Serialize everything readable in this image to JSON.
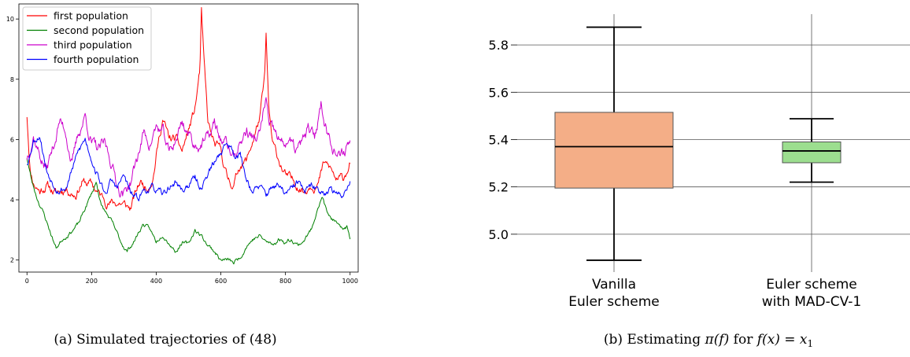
{
  "chart_data": [
    {
      "type": "line",
      "title": "",
      "xlabel": "",
      "ylabel": "",
      "xlim": [
        -25,
        1025
      ],
      "ylim": [
        1.6,
        10.5
      ],
      "xticks": [
        0,
        200,
        400,
        600,
        800,
        1000
      ],
      "yticks": [
        2,
        4,
        6,
        8,
        10
      ],
      "legend_position": "top-left",
      "series": [
        {
          "name": "first population",
          "color": "#ff0000",
          "anchors": [
            [
              0,
              6.8
            ],
            [
              10,
              5.0
            ],
            [
              20,
              4.6
            ],
            [
              40,
              4.3
            ],
            [
              60,
              4.5
            ],
            [
              90,
              4.2
            ],
            [
              120,
              4.4
            ],
            [
              150,
              4.2
            ],
            [
              170,
              4.6
            ],
            [
              200,
              4.5
            ],
            [
              230,
              4.1
            ],
            [
              260,
              3.9
            ],
            [
              290,
              3.9
            ],
            [
              320,
              3.7
            ],
            [
              350,
              4.6
            ],
            [
              370,
              4.4
            ],
            [
              390,
              4.8
            ],
            [
              400,
              5.5
            ],
            [
              420,
              6.7
            ],
            [
              440,
              6.0
            ],
            [
              460,
              6.0
            ],
            [
              480,
              5.6
            ],
            [
              500,
              6.3
            ],
            [
              520,
              7.0
            ],
            [
              535,
              8.3
            ],
            [
              540,
              10.2
            ],
            [
              548,
              8.5
            ],
            [
              560,
              6.5
            ],
            [
              580,
              5.8
            ],
            [
              600,
              5.6
            ],
            [
              620,
              4.7
            ],
            [
              640,
              4.5
            ],
            [
              660,
              5.2
            ],
            [
              680,
              5.3
            ],
            [
              700,
              6.0
            ],
            [
              720,
              6.7
            ],
            [
              735,
              7.9
            ],
            [
              740,
              9.4
            ],
            [
              748,
              7.0
            ],
            [
              760,
              5.8
            ],
            [
              780,
              5.3
            ],
            [
              800,
              4.8
            ],
            [
              820,
              4.6
            ],
            [
              840,
              4.5
            ],
            [
              860,
              4.3
            ],
            [
              880,
              4.6
            ],
            [
              900,
              4.5
            ],
            [
              920,
              5.2
            ],
            [
              940,
              5.0
            ],
            [
              960,
              4.6
            ],
            [
              980,
              4.7
            ],
            [
              1000,
              5.3
            ]
          ],
          "noise": 0.22,
          "seed": 11
        },
        {
          "name": "second population",
          "color": "#008000",
          "anchors": [
            [
              0,
              5.4
            ],
            [
              15,
              4.6
            ],
            [
              30,
              4.1
            ],
            [
              50,
              3.6
            ],
            [
              70,
              3.0
            ],
            [
              90,
              2.4
            ],
            [
              110,
              2.7
            ],
            [
              130,
              2.9
            ],
            [
              160,
              3.2
            ],
            [
              180,
              3.7
            ],
            [
              200,
              4.2
            ],
            [
              215,
              4.6
            ],
            [
              230,
              3.8
            ],
            [
              260,
              3.3
            ],
            [
              290,
              2.6
            ],
            [
              310,
              2.3
            ],
            [
              330,
              2.6
            ],
            [
              360,
              3.2
            ],
            [
              380,
              3.0
            ],
            [
              400,
              2.6
            ],
            [
              420,
              2.9
            ],
            [
              440,
              2.6
            ],
            [
              460,
              2.3
            ],
            [
              480,
              2.6
            ],
            [
              500,
              2.5
            ],
            [
              520,
              3.0
            ],
            [
              540,
              2.8
            ],
            [
              560,
              2.5
            ],
            [
              580,
              2.3
            ],
            [
              600,
              2.0
            ],
            [
              620,
              2.0
            ],
            [
              640,
              1.9
            ],
            [
              660,
              2.1
            ],
            [
              680,
              2.5
            ],
            [
              700,
              2.7
            ],
            [
              720,
              2.8
            ],
            [
              740,
              2.6
            ],
            [
              760,
              2.5
            ],
            [
              780,
              2.7
            ],
            [
              800,
              2.6
            ],
            [
              820,
              2.7
            ],
            [
              840,
              2.5
            ],
            [
              860,
              2.7
            ],
            [
              880,
              3.0
            ],
            [
              900,
              3.8
            ],
            [
              915,
              4.1
            ],
            [
              930,
              3.5
            ],
            [
              950,
              3.3
            ],
            [
              970,
              3.0
            ],
            [
              990,
              3.1
            ],
            [
              1000,
              2.7
            ]
          ],
          "noise": 0.1,
          "seed": 23
        },
        {
          "name": "third population",
          "color": "#cc00cc",
          "anchors": [
            [
              0,
              5.4
            ],
            [
              20,
              6.2
            ],
            [
              40,
              5.5
            ],
            [
              60,
              5.0
            ],
            [
              80,
              5.7
            ],
            [
              100,
              6.6
            ],
            [
              120,
              6.3
            ],
            [
              140,
              5.2
            ],
            [
              160,
              6.2
            ],
            [
              180,
              6.8
            ],
            [
              200,
              5.9
            ],
            [
              220,
              5.6
            ],
            [
              240,
              5.8
            ],
            [
              260,
              5.3
            ],
            [
              280,
              4.5
            ],
            [
              300,
              4.2
            ],
            [
              320,
              4.6
            ],
            [
              340,
              5.3
            ],
            [
              360,
              6.2
            ],
            [
              380,
              5.9
            ],
            [
              400,
              6.4
            ],
            [
              420,
              6.2
            ],
            [
              440,
              5.5
            ],
            [
              460,
              6.0
            ],
            [
              480,
              6.6
            ],
            [
              500,
              6.2
            ],
            [
              520,
              5.8
            ],
            [
              540,
              5.9
            ],
            [
              560,
              6.0
            ],
            [
              580,
              6.5
            ],
            [
              600,
              6.0
            ],
            [
              620,
              5.8
            ],
            [
              640,
              5.4
            ],
            [
              660,
              5.9
            ],
            [
              680,
              6.3
            ],
            [
              700,
              6.0
            ],
            [
              720,
              6.1
            ],
            [
              740,
              7.4
            ],
            [
              750,
              6.3
            ],
            [
              770,
              6.1
            ],
            [
              790,
              5.8
            ],
            [
              810,
              6.0
            ],
            [
              830,
              5.6
            ],
            [
              850,
              5.8
            ],
            [
              870,
              6.3
            ],
            [
              890,
              6.0
            ],
            [
              910,
              7.2
            ],
            [
              930,
              6.3
            ],
            [
              950,
              5.8
            ],
            [
              970,
              5.3
            ],
            [
              990,
              5.8
            ],
            [
              1000,
              6.0
            ]
          ],
          "noise": 0.3,
          "seed": 37
        },
        {
          "name": "fourth population",
          "color": "#0000ff",
          "anchors": [
            [
              0,
              5.2
            ],
            [
              20,
              6.0
            ],
            [
              40,
              6.2
            ],
            [
              60,
              5.0
            ],
            [
              80,
              4.6
            ],
            [
              100,
              4.4
            ],
            [
              120,
              4.4
            ],
            [
              140,
              5.0
            ],
            [
              160,
              5.6
            ],
            [
              180,
              6.0
            ],
            [
              200,
              5.4
            ],
            [
              220,
              4.8
            ],
            [
              240,
              4.2
            ],
            [
              260,
              4.6
            ],
            [
              280,
              4.4
            ],
            [
              300,
              4.8
            ],
            [
              320,
              4.2
            ],
            [
              340,
              4.0
            ],
            [
              360,
              4.3
            ],
            [
              380,
              4.4
            ],
            [
              400,
              4.3
            ],
            [
              420,
              4.1
            ],
            [
              440,
              4.4
            ],
            [
              460,
              4.6
            ],
            [
              480,
              4.3
            ],
            [
              500,
              4.5
            ],
            [
              520,
              4.7
            ],
            [
              540,
              4.4
            ],
            [
              560,
              4.9
            ],
            [
              580,
              5.2
            ],
            [
              600,
              5.6
            ],
            [
              620,
              5.9
            ],
            [
              640,
              5.6
            ],
            [
              660,
              5.5
            ],
            [
              680,
              4.7
            ],
            [
              700,
              4.3
            ],
            [
              720,
              4.4
            ],
            [
              740,
              4.1
            ],
            [
              760,
              4.5
            ],
            [
              780,
              4.4
            ],
            [
              800,
              4.2
            ],
            [
              820,
              4.3
            ],
            [
              840,
              4.6
            ],
            [
              860,
              4.2
            ],
            [
              880,
              4.4
            ],
            [
              900,
              4.3
            ],
            [
              920,
              4.3
            ],
            [
              940,
              4.4
            ],
            [
              960,
              4.1
            ],
            [
              980,
              4.2
            ],
            [
              1000,
              4.7
            ]
          ],
          "noise": 0.18,
          "seed": 53
        }
      ],
      "caption": "(a) Simulated trajectories of (48)"
    },
    {
      "type": "box",
      "title": "",
      "xlabel": "",
      "ylabel": "",
      "ylim": [
        4.84,
        5.93
      ],
      "yticks": [
        5.0,
        5.2,
        5.4,
        5.6,
        5.8
      ],
      "ytick_labels": [
        "5.0",
        "5.2",
        "5.4",
        "5.6",
        "5.8"
      ],
      "grid": "horizontal and vertical",
      "boxes": [
        {
          "label_line1": "Vanilla",
          "label_line2": "Euler scheme",
          "min": 4.89,
          "q1": 5.195,
          "median": 5.37,
          "q3": 5.515,
          "max": 5.875,
          "color": "#f4ae87"
        },
        {
          "label_line1": "Euler scheme",
          "label_line2": "with MAD-CV-1",
          "min": 5.22,
          "q1": 5.302,
          "median": 5.352,
          "q3": 5.39,
          "max": 5.488,
          "color": "#9cde8f"
        }
      ],
      "caption_prefix": "(b) Estimating ",
      "caption_math_1": "π(f)",
      "caption_mid": " for ",
      "caption_math_2": "f(x) = x",
      "caption_subscript": "1"
    }
  ]
}
